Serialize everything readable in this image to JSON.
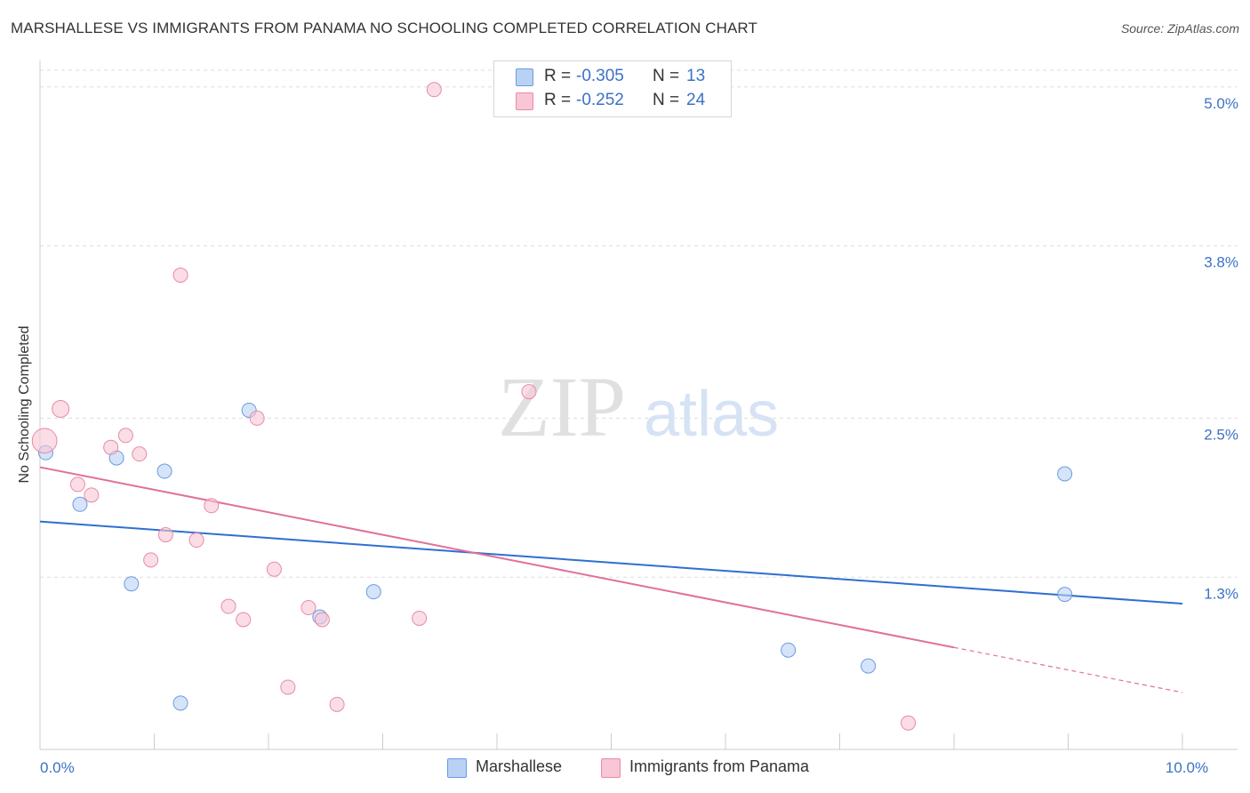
{
  "header": {
    "title": "MARSHALLESE VS IMMIGRANTS FROM PANAMA NO SCHOOLING COMPLETED CORRELATION CHART",
    "source": "Source: ZipAtlas.com"
  },
  "watermark": {
    "zip": "ZIP",
    "atlas": "atlas"
  },
  "colors": {
    "blue_fill": "#b9d2f3",
    "blue_stroke": "#6b9be0",
    "blue_line": "#2f6fd0",
    "pink_fill": "#f8c6d4",
    "pink_stroke": "#e88aa6",
    "pink_line": "#e0709a",
    "tick_label": "#3b72c4",
    "grid": "#dddddd"
  },
  "legend": {
    "series": [
      {
        "r_label": "R =",
        "r_value": "-0.305",
        "n_label": "N =",
        "n_value": "13",
        "color": "#b9d2f3",
        "border": "#6b9be0"
      },
      {
        "r_label": "R =",
        "r_value": "-0.252",
        "n_label": "N =",
        "n_value": "24",
        "color": "#f8c6d4",
        "border": "#e88aa6"
      }
    ],
    "bottom": [
      {
        "label": "Marshallese",
        "color": "#b9d2f3",
        "border": "#6b9be0"
      },
      {
        "label": "Immigrants from Panama",
        "color": "#f8c6d4",
        "border": "#e88aa6"
      }
    ]
  },
  "chart_data": {
    "type": "scatter",
    "title": "MARSHALLESE VS IMMIGRANTS FROM PANAMA NO SCHOOLING COMPLETED CORRELATION CHART",
    "xlabel": "",
    "ylabel": "No Schooling Completed",
    "xlim": [
      0,
      10
    ],
    "ylim": [
      0,
      5.2
    ],
    "x_tick_labels": [
      {
        "value": 0,
        "label": "0.0%"
      },
      {
        "value": 10,
        "label": "10.0%"
      }
    ],
    "x_tick_marks": [
      0,
      1,
      2,
      3,
      4,
      5,
      6,
      7,
      8,
      9,
      10
    ],
    "y_ticks": [
      {
        "value": 1.3,
        "label": "1.3%"
      },
      {
        "value": 2.5,
        "label": "2.5%"
      },
      {
        "value": 3.8,
        "label": "3.8%"
      },
      {
        "value": 5.0,
        "label": "5.0%"
      }
    ],
    "grid": true,
    "series": [
      {
        "name": "Marshallese",
        "points": [
          {
            "x": 0.05,
            "y": 2.24,
            "size": 1
          },
          {
            "x": 0.35,
            "y": 1.85,
            "size": 1
          },
          {
            "x": 0.67,
            "y": 2.2,
            "size": 1
          },
          {
            "x": 0.8,
            "y": 1.25,
            "size": 1
          },
          {
            "x": 1.09,
            "y": 2.1,
            "size": 1
          },
          {
            "x": 1.23,
            "y": 0.35,
            "size": 1
          },
          {
            "x": 1.83,
            "y": 2.56,
            "size": 1
          },
          {
            "x": 2.45,
            "y": 1.0,
            "size": 1
          },
          {
            "x": 2.92,
            "y": 1.19,
            "size": 1
          },
          {
            "x": 6.55,
            "y": 0.75,
            "size": 1
          },
          {
            "x": 7.25,
            "y": 0.63,
            "size": 1
          },
          {
            "x": 8.97,
            "y": 2.08,
            "size": 1
          },
          {
            "x": 8.97,
            "y": 1.17,
            "size": 1
          }
        ],
        "trend": {
          "x0": 0,
          "y0": 1.72,
          "x1": 10,
          "y1": 1.1
        }
      },
      {
        "name": "Immigrants from Panama",
        "points": [
          {
            "x": 0.04,
            "y": 2.33,
            "size": 3
          },
          {
            "x": 0.18,
            "y": 2.57,
            "size": 1.4
          },
          {
            "x": 0.33,
            "y": 2.0,
            "size": 1
          },
          {
            "x": 0.45,
            "y": 1.92,
            "size": 1
          },
          {
            "x": 0.62,
            "y": 2.28,
            "size": 1
          },
          {
            "x": 0.75,
            "y": 2.37,
            "size": 1
          },
          {
            "x": 0.87,
            "y": 2.23,
            "size": 1
          },
          {
            "x": 0.97,
            "y": 1.43,
            "size": 1
          },
          {
            "x": 1.1,
            "y": 1.62,
            "size": 1
          },
          {
            "x": 1.23,
            "y": 3.58,
            "size": 1
          },
          {
            "x": 1.37,
            "y": 1.58,
            "size": 1
          },
          {
            "x": 1.5,
            "y": 1.84,
            "size": 1
          },
          {
            "x": 1.65,
            "y": 1.08,
            "size": 1
          },
          {
            "x": 1.78,
            "y": 0.98,
            "size": 1
          },
          {
            "x": 1.9,
            "y": 2.5,
            "size": 1
          },
          {
            "x": 2.05,
            "y": 1.36,
            "size": 1
          },
          {
            "x": 2.17,
            "y": 0.47,
            "size": 1
          },
          {
            "x": 2.35,
            "y": 1.07,
            "size": 1
          },
          {
            "x": 2.47,
            "y": 0.98,
            "size": 1
          },
          {
            "x": 2.6,
            "y": 0.34,
            "size": 1
          },
          {
            "x": 3.32,
            "y": 0.99,
            "size": 1
          },
          {
            "x": 3.45,
            "y": 4.98,
            "size": 1
          },
          {
            "x": 4.28,
            "y": 2.7,
            "size": 1
          },
          {
            "x": 7.6,
            "y": 0.2,
            "size": 1
          }
        ],
        "trend": {
          "x0": 0,
          "y0": 2.13,
          "x1": 8.0,
          "y1": 0.77,
          "dashed_x1": 10,
          "dashed_y1": 0.43
        }
      }
    ]
  }
}
